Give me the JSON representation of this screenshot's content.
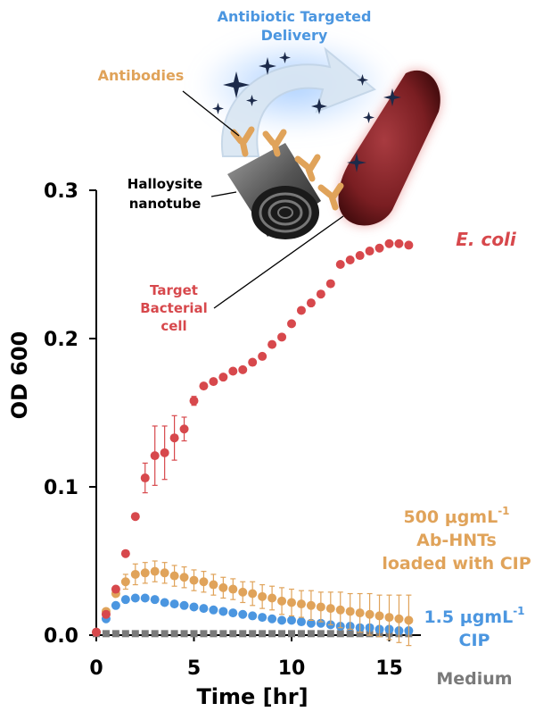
{
  "chart_data": {
    "type": "scatter",
    "xlabel": "Time [hr]",
    "ylabel": "OD 600",
    "xlim": [
      -0.3,
      16.5
    ],
    "ylim": [
      0,
      0.3
    ],
    "x_ticks": [
      "0",
      "5",
      "10",
      "15"
    ],
    "x_tick_values": [
      0,
      5,
      10,
      15
    ],
    "y_ticks": [
      "0.0",
      "0.1",
      "0.2",
      "0.3"
    ],
    "y_tick_values": [
      0,
      0.1,
      0.2,
      0.3
    ],
    "series": [
      {
        "name": "E. coli",
        "color": "#d7484c",
        "x": [
          0,
          0.5,
          1,
          1.5,
          2,
          2.5,
          3,
          3.5,
          4,
          4.5,
          5,
          5.5,
          6,
          6.5,
          7,
          7.5,
          8,
          8.5,
          9,
          9.5,
          10,
          10.5,
          11,
          11.5,
          12,
          12.5,
          13,
          13.5,
          14,
          14.5,
          15,
          15.5,
          16
        ],
        "y": [
          0.002,
          0.014,
          0.031,
          0.055,
          0.08,
          0.106,
          0.121,
          0.123,
          0.133,
          0.139,
          0.158,
          0.168,
          0.171,
          0.174,
          0.178,
          0.179,
          0.184,
          0.188,
          0.196,
          0.201,
          0.21,
          0.219,
          0.224,
          0.23,
          0.237,
          0.25,
          0.253,
          0.256,
          0.259,
          0.261,
          0.264,
          0.264,
          0.263
        ],
        "err": [
          0,
          0,
          0,
          0,
          0,
          0.01,
          0.02,
          0.018,
          0.015,
          0.008,
          0.003,
          0,
          0,
          0,
          0,
          0,
          0,
          0,
          0,
          0,
          0,
          0,
          0,
          0,
          0,
          0,
          0,
          0,
          0,
          0,
          0,
          0,
          0
        ]
      },
      {
        "name": "500 μgmL-1 Ab-HNTs loaded with CIP",
        "color": "#e0a35a",
        "x": [
          0,
          0.5,
          1,
          1.5,
          2,
          2.5,
          3,
          3.5,
          4,
          4.5,
          5,
          5.5,
          6,
          6.5,
          7,
          7.5,
          8,
          8.5,
          9,
          9.5,
          10,
          10.5,
          11,
          11.5,
          12,
          12.5,
          13,
          13.5,
          14,
          14.5,
          15,
          15.5,
          16
        ],
        "y": [
          0.002,
          0.016,
          0.028,
          0.036,
          0.041,
          0.042,
          0.043,
          0.042,
          0.04,
          0.039,
          0.037,
          0.036,
          0.034,
          0.032,
          0.031,
          0.029,
          0.028,
          0.026,
          0.025,
          0.023,
          0.022,
          0.021,
          0.02,
          0.019,
          0.018,
          0.017,
          0.016,
          0.015,
          0.014,
          0.013,
          0.012,
          0.011,
          0.01
        ],
        "err": [
          0,
          0.001,
          0.002,
          0.005,
          0.007,
          0.007,
          0.007,
          0.007,
          0.007,
          0.007,
          0.007,
          0.007,
          0.007,
          0.007,
          0.007,
          0.007,
          0.008,
          0.008,
          0.008,
          0.009,
          0.009,
          0.009,
          0.01,
          0.01,
          0.011,
          0.012,
          0.012,
          0.013,
          0.014,
          0.014,
          0.015,
          0.016,
          0.017
        ]
      },
      {
        "name": "1.5 μgmL-1 CIP",
        "color": "#4b96e0",
        "x": [
          0,
          0.5,
          1,
          1.5,
          2,
          2.5,
          3,
          3.5,
          4,
          4.5,
          5,
          5.5,
          6,
          6.5,
          7,
          7.5,
          8,
          8.5,
          9,
          9.5,
          10,
          10.5,
          11,
          11.5,
          12,
          12.5,
          13,
          13.5,
          14,
          14.5,
          15,
          15.5,
          16
        ],
        "y": [
          0.002,
          0.011,
          0.02,
          0.024,
          0.025,
          0.025,
          0.024,
          0.022,
          0.021,
          0.02,
          0.019,
          0.018,
          0.017,
          0.016,
          0.015,
          0.014,
          0.013,
          0.012,
          0.011,
          0.01,
          0.01,
          0.009,
          0.008,
          0.008,
          0.007,
          0.006,
          0.006,
          0.005,
          0.005,
          0.004,
          0.004,
          0.003,
          0.003
        ],
        "err": []
      },
      {
        "name": "Medium",
        "color": "#7a7a7a",
        "marker": "square",
        "x": [
          0,
          0.5,
          1,
          1.5,
          2,
          2.5,
          3,
          3.5,
          4,
          4.5,
          5,
          5.5,
          6,
          6.5,
          7,
          7.5,
          8,
          8.5,
          9,
          9.5,
          10,
          10.5,
          11,
          11.5,
          12,
          12.5,
          13,
          13.5,
          14,
          14.5,
          15,
          15.5,
          16
        ],
        "y": [
          0.001,
          0.001,
          0.001,
          0.001,
          0.001,
          0.001,
          0.001,
          0.001,
          0.001,
          0.001,
          0.001,
          0.001,
          0.001,
          0.001,
          0.001,
          0.001,
          0.001,
          0.001,
          0.001,
          0.001,
          0.001,
          0.001,
          0.001,
          0.001,
          0.001,
          0.001,
          0.001,
          0.001,
          0.001,
          0.001,
          0.001,
          0.001,
          0.001
        ],
        "err": []
      }
    ],
    "labels": {
      "ecoli": "E. coli",
      "abhnt_line1_main": "500 μgmL",
      "abhnt_line1_sup": "-1",
      "abhnt_line2": "Ab-HNTs",
      "abhnt_line3": "loaded with CIP",
      "cip_line1_main": "1.5 μgmL",
      "cip_line1_sup": "-1",
      "cip_line2": "CIP",
      "medium": "Medium"
    },
    "illustration": {
      "delivery_line1": "Antibiotic Targeted",
      "delivery_line2": "Delivery",
      "antibodies": "Antibodies",
      "halloysite_line1": "Halloysite",
      "halloysite_line2": "nanotube",
      "target_line1": "Target",
      "target_line2": "Bacterial",
      "target_line3": "cell"
    },
    "colors": {
      "ecoli": "#d7484c",
      "abhnt": "#e0a35a",
      "cip": "#4b96e0",
      "medium": "#7a7a7a",
      "delivery": "#4b96e0",
      "antibody": "#e0a35a"
    }
  }
}
